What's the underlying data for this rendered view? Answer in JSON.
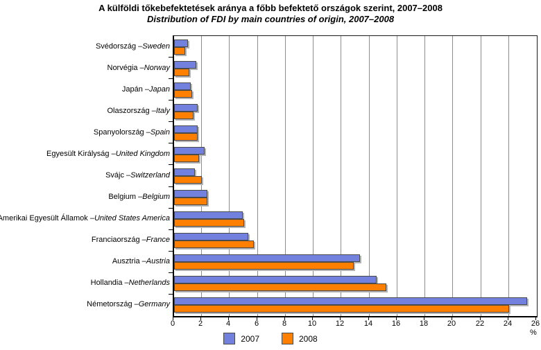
{
  "title": {
    "line1": "A külföldi tőkebefektetések aránya a főbb befektető országok szerint, 2007–2008",
    "line2": "Distribution of FDI by main countries of origin, 2007–2008"
  },
  "chart_data": {
    "type": "bar",
    "orientation": "horizontal",
    "title": "A külföldi tőkebefektetések aránya a főbb befektető országok szerint, 2007–2008",
    "subtitle": "Distribution of FDI by main countries of origin, 2007–2008",
    "label_separator": " – ",
    "categories": [
      {
        "hu": "Svédország",
        "en": "Sweden"
      },
      {
        "hu": "Norvégia",
        "en": "Norway"
      },
      {
        "hu": "Japán",
        "en": "Japan"
      },
      {
        "hu": "Olaszország",
        "en": "Italy"
      },
      {
        "hu": "Spanyolország",
        "en": "Spain"
      },
      {
        "hu": "Egyesült Királyság",
        "en": "United Kingdom"
      },
      {
        "hu": "Svájc",
        "en": "Switzerland"
      },
      {
        "hu": "Belgium",
        "en": "Belgium"
      },
      {
        "hu": "Amerikai Egyesült Államok",
        "en": "United States America"
      },
      {
        "hu": "Franciaország",
        "en": "France"
      },
      {
        "hu": "Ausztria",
        "en": "Austria"
      },
      {
        "hu": "Hollandia",
        "en": "Netherlands"
      },
      {
        "hu": "Németország",
        "en": "Germany"
      }
    ],
    "series": [
      {
        "name": "2007",
        "color": "#7280DE",
        "values": [
          1.0,
          1.6,
          1.2,
          1.7,
          1.7,
          2.2,
          1.5,
          2.4,
          4.9,
          5.3,
          13.3,
          14.5,
          25.3
        ]
      },
      {
        "name": "2008",
        "color": "#FF7F00",
        "values": [
          0.8,
          1.1,
          1.3,
          1.4,
          1.7,
          1.8,
          2.0,
          2.4,
          5.0,
          5.7,
          12.9,
          15.2,
          24.0
        ]
      }
    ],
    "xlabel": "%",
    "xlim": [
      0,
      26
    ],
    "xticks": [
      0,
      2,
      4,
      6,
      8,
      10,
      12,
      14,
      16,
      18,
      20,
      22,
      24,
      26
    ],
    "grid": true,
    "legend_position": "bottom"
  },
  "colors": {
    "bar_2007": "#7280DE",
    "bar_2008": "#FF7F00",
    "gridline": "#8c8c8c",
    "axis": "#000000",
    "bar_shadow": "#b4b4b4"
  }
}
